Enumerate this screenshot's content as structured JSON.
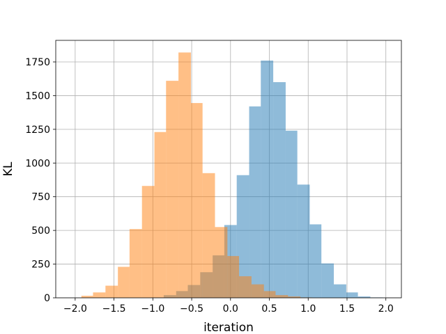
{
  "chart_data": {
    "type": "bar",
    "xlabel": "iteration",
    "ylabel": "KL",
    "xlim": [
      -2.25,
      2.2
    ],
    "ylim": [
      0,
      1910
    ],
    "grid": true,
    "xticks": [
      -2.0,
      -1.5,
      -1.0,
      -0.5,
      0.0,
      0.5,
      1.0,
      1.5,
      2.0
    ],
    "xtick_labels": [
      "−2.0",
      "−1.5",
      "−1.0",
      "−0.5",
      "0.0",
      "0.5",
      "1.0",
      "1.5",
      "2.0"
    ],
    "yticks": [
      0,
      250,
      500,
      750,
      1000,
      1250,
      1500,
      1750
    ],
    "ytick_labels": [
      "0",
      "250",
      "500",
      "750",
      "1000",
      "1250",
      "1500",
      "1750"
    ],
    "series": [
      {
        "color": "#1f77b4",
        "opacity": 0.5,
        "bin_edges": [
          -1.02,
          -0.86,
          -0.7,
          -0.55,
          -0.39,
          -0.23,
          -0.08,
          0.08,
          0.24,
          0.39,
          0.55,
          0.71,
          0.86,
          1.02,
          1.17,
          1.33,
          1.49,
          1.64,
          1.8,
          1.96
        ],
        "counts": [
          3,
          20,
          50,
          95,
          190,
          315,
          540,
          910,
          1420,
          1760,
          1600,
          1240,
          840,
          545,
          255,
          100,
          40,
          10,
          3
        ]
      },
      {
        "color": "#ff7f0e",
        "opacity": 0.5,
        "bin_edges": [
          -1.92,
          -1.77,
          -1.61,
          -1.45,
          -1.3,
          -1.14,
          -0.98,
          -0.83,
          -0.67,
          -0.51,
          -0.36,
          -0.2,
          -0.04,
          0.11,
          0.27,
          0.43,
          0.58,
          0.74,
          0.9,
          1.05
        ],
        "counts": [
          15,
          40,
          90,
          230,
          510,
          830,
          1230,
          1610,
          1820,
          1445,
          925,
          525,
          310,
          160,
          100,
          50,
          20,
          10,
          3
        ]
      }
    ]
  }
}
